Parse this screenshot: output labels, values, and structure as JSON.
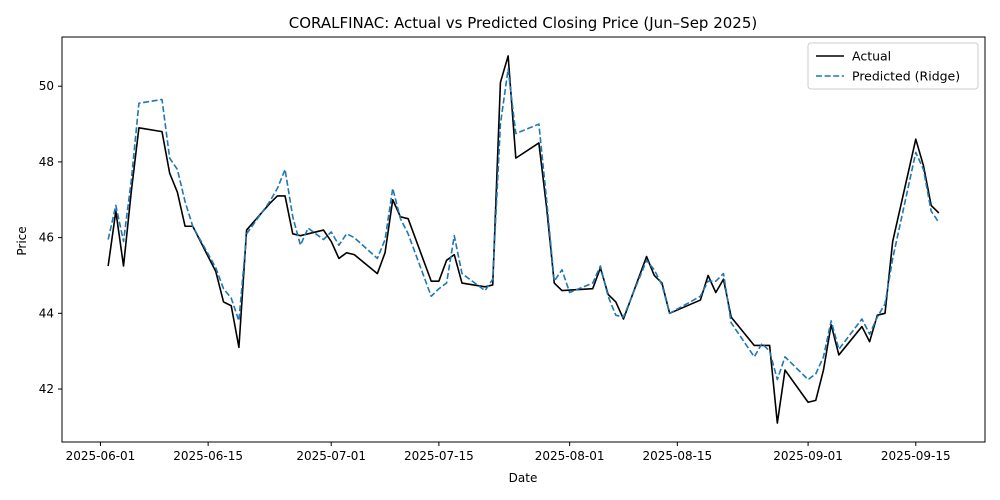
{
  "chart_data": {
    "type": "line",
    "title": "CORALFINAC: Actual vs Predicted Closing Price (Jun–Sep 2025)",
    "xlabel": "Date",
    "ylabel": "Price",
    "xlim": [
      "2025-05-27",
      "2025-09-24"
    ],
    "ylim": [
      40.6,
      51.3
    ],
    "x_ticks": [
      "2025-06-01",
      "2025-06-15",
      "2025-07-01",
      "2025-07-15",
      "2025-08-01",
      "2025-08-15",
      "2025-09-01",
      "2025-09-15"
    ],
    "y_ticks": [
      42,
      44,
      46,
      48,
      50
    ],
    "legend_position": "top-right",
    "grid": false,
    "series": [
      {
        "name": "Actual",
        "color": "#000000",
        "style": "solid",
        "points": [
          [
            "2025-06-02",
            45.25
          ],
          [
            "2025-06-03",
            46.7
          ],
          [
            "2025-06-04",
            45.25
          ],
          [
            "2025-06-05",
            47.2
          ],
          [
            "2025-06-06",
            48.9
          ],
          [
            "2025-06-09",
            48.8
          ],
          [
            "2025-06-10",
            47.7
          ],
          [
            "2025-06-11",
            47.2
          ],
          [
            "2025-06-12",
            46.3
          ],
          [
            "2025-06-13",
            46.3
          ],
          [
            "2025-06-16",
            45.1
          ],
          [
            "2025-06-17",
            44.3
          ],
          [
            "2025-06-18",
            44.2
          ],
          [
            "2025-06-19",
            43.1
          ],
          [
            "2025-06-20",
            46.2
          ],
          [
            "2025-06-23",
            46.9
          ],
          [
            "2025-06-24",
            47.1
          ],
          [
            "2025-06-25",
            47.1
          ],
          [
            "2025-06-26",
            46.1
          ],
          [
            "2025-06-27",
            46.05
          ],
          [
            "2025-06-30",
            46.2
          ],
          [
            "2025-07-01",
            45.9
          ],
          [
            "2025-07-02",
            45.45
          ],
          [
            "2025-07-03",
            45.6
          ],
          [
            "2025-07-04",
            45.55
          ],
          [
            "2025-07-07",
            45.05
          ],
          [
            "2025-07-08",
            45.6
          ],
          [
            "2025-07-09",
            47.0
          ],
          [
            "2025-07-10",
            46.55
          ],
          [
            "2025-07-11",
            46.5
          ],
          [
            "2025-07-14",
            44.85
          ],
          [
            "2025-07-15",
            44.85
          ],
          [
            "2025-07-16",
            45.4
          ],
          [
            "2025-07-17",
            45.55
          ],
          [
            "2025-07-18",
            44.8
          ],
          [
            "2025-07-21",
            44.7
          ],
          [
            "2025-07-22",
            44.75
          ],
          [
            "2025-07-23",
            50.1
          ],
          [
            "2025-07-24",
            50.8
          ],
          [
            "2025-07-25",
            48.1
          ],
          [
            "2025-07-28",
            48.5
          ],
          [
            "2025-07-29",
            46.8
          ],
          [
            "2025-07-30",
            44.8
          ],
          [
            "2025-07-31",
            44.6
          ],
          [
            "2025-08-04",
            44.65
          ],
          [
            "2025-08-05",
            45.2
          ],
          [
            "2025-08-06",
            44.5
          ],
          [
            "2025-08-07",
            44.3
          ],
          [
            "2025-08-08",
            43.85
          ],
          [
            "2025-08-11",
            45.5
          ],
          [
            "2025-08-12",
            45.0
          ],
          [
            "2025-08-13",
            44.8
          ],
          [
            "2025-08-14",
            44.0
          ],
          [
            "2025-08-18",
            44.35
          ],
          [
            "2025-08-19",
            45.0
          ],
          [
            "2025-08-20",
            44.55
          ],
          [
            "2025-08-21",
            44.9
          ],
          [
            "2025-08-22",
            43.9
          ],
          [
            "2025-08-25",
            43.15
          ],
          [
            "2025-08-26",
            43.15
          ],
          [
            "2025-08-27",
            43.15
          ],
          [
            "2025-08-28",
            41.1
          ],
          [
            "2025-08-29",
            42.5
          ],
          [
            "2025-09-01",
            41.65
          ],
          [
            "2025-09-02",
            41.7
          ],
          [
            "2025-09-03",
            42.5
          ],
          [
            "2025-09-04",
            43.7
          ],
          [
            "2025-09-05",
            42.9
          ],
          [
            "2025-09-08",
            43.65
          ],
          [
            "2025-09-09",
            43.25
          ],
          [
            "2025-09-10",
            43.95
          ],
          [
            "2025-09-11",
            44.0
          ],
          [
            "2025-09-12",
            45.9
          ],
          [
            "2025-09-15",
            48.6
          ],
          [
            "2025-09-16",
            47.9
          ],
          [
            "2025-09-17",
            46.85
          ],
          [
            "2025-09-18",
            46.65
          ]
        ]
      },
      {
        "name": "Predicted (Ridge)",
        "color": "#1f77b4",
        "style": "dashed",
        "points": [
          [
            "2025-06-02",
            45.95
          ],
          [
            "2025-06-03",
            46.85
          ],
          [
            "2025-06-04",
            45.9
          ],
          [
            "2025-06-05",
            47.5
          ],
          [
            "2025-06-06",
            49.55
          ],
          [
            "2025-06-09",
            49.65
          ],
          [
            "2025-06-10",
            48.1
          ],
          [
            "2025-06-11",
            47.8
          ],
          [
            "2025-06-12",
            46.95
          ],
          [
            "2025-06-13",
            46.3
          ],
          [
            "2025-06-16",
            45.2
          ],
          [
            "2025-06-17",
            44.65
          ],
          [
            "2025-06-18",
            44.4
          ],
          [
            "2025-06-19",
            43.8
          ],
          [
            "2025-06-20",
            46.1
          ],
          [
            "2025-06-23",
            46.95
          ],
          [
            "2025-06-24",
            47.3
          ],
          [
            "2025-06-25",
            47.8
          ],
          [
            "2025-06-26",
            46.55
          ],
          [
            "2025-06-27",
            45.8
          ],
          [
            "2025-06-28",
            46.25
          ],
          [
            "2025-06-30",
            45.95
          ],
          [
            "2025-07-01",
            46.15
          ],
          [
            "2025-07-02",
            45.8
          ],
          [
            "2025-07-03",
            46.1
          ],
          [
            "2025-07-04",
            46.0
          ],
          [
            "2025-07-07",
            45.45
          ],
          [
            "2025-07-08",
            45.95
          ],
          [
            "2025-07-09",
            47.3
          ],
          [
            "2025-07-10",
            46.5
          ],
          [
            "2025-07-11",
            46.1
          ],
          [
            "2025-07-14",
            44.45
          ],
          [
            "2025-07-15",
            44.65
          ],
          [
            "2025-07-16",
            44.8
          ],
          [
            "2025-07-17",
            46.05
          ],
          [
            "2025-07-18",
            45.05
          ],
          [
            "2025-07-21",
            44.6
          ],
          [
            "2025-07-22",
            44.9
          ],
          [
            "2025-07-23",
            49.0
          ],
          [
            "2025-07-24",
            50.45
          ],
          [
            "2025-07-25",
            48.75
          ],
          [
            "2025-07-28",
            49.0
          ],
          [
            "2025-07-29",
            47.0
          ],
          [
            "2025-07-30",
            44.85
          ],
          [
            "2025-07-31",
            45.15
          ],
          [
            "2025-08-01",
            44.55
          ],
          [
            "2025-08-04",
            44.8
          ],
          [
            "2025-08-05",
            45.25
          ],
          [
            "2025-08-06",
            44.45
          ],
          [
            "2025-08-07",
            43.95
          ],
          [
            "2025-08-08",
            43.9
          ],
          [
            "2025-08-11",
            45.4
          ],
          [
            "2025-08-12",
            45.15
          ],
          [
            "2025-08-13",
            44.75
          ],
          [
            "2025-08-14",
            44.0
          ],
          [
            "2025-08-18",
            44.45
          ],
          [
            "2025-08-19",
            44.85
          ],
          [
            "2025-08-20",
            44.85
          ],
          [
            "2025-08-21",
            45.05
          ],
          [
            "2025-08-22",
            43.75
          ],
          [
            "2025-08-25",
            42.85
          ],
          [
            "2025-08-26",
            43.2
          ],
          [
            "2025-08-27",
            43.0
          ],
          [
            "2025-08-28",
            42.25
          ],
          [
            "2025-08-29",
            42.85
          ],
          [
            "2025-09-01",
            42.25
          ],
          [
            "2025-09-02",
            42.4
          ],
          [
            "2025-09-03",
            42.85
          ],
          [
            "2025-09-04",
            43.8
          ],
          [
            "2025-09-05",
            43.05
          ],
          [
            "2025-09-08",
            43.85
          ],
          [
            "2025-09-09",
            43.45
          ],
          [
            "2025-09-10",
            43.9
          ],
          [
            "2025-09-11",
            44.25
          ],
          [
            "2025-09-12",
            45.45
          ],
          [
            "2025-09-15",
            48.25
          ],
          [
            "2025-09-16",
            47.8
          ],
          [
            "2025-09-17",
            46.7
          ],
          [
            "2025-09-18",
            46.4
          ]
        ]
      }
    ]
  }
}
